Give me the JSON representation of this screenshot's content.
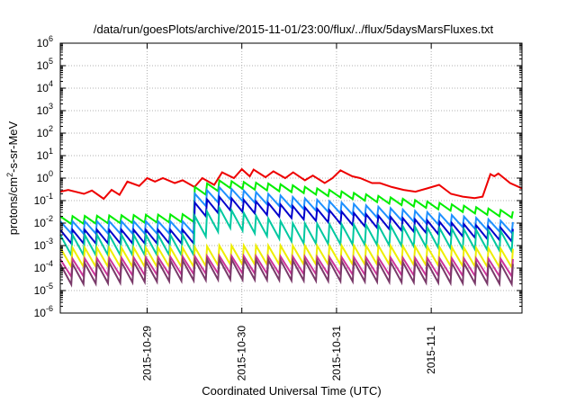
{
  "chart_data": {
    "type": "line",
    "title": "/data/run/goesPlots/archive/2015-11-01/23:00/flux/../flux/5daysMarsFluxes.txt",
    "xlabel": "Coordinated Universal Time (UTC)",
    "ylabel": {
      "base": "protons/cm",
      "sup": "2",
      "rest": "-s-sr-MeV"
    },
    "y_scale": "log",
    "ylim": [
      1e-06,
      1000000.0
    ],
    "y_ticks": [
      {
        "value": 1e-06,
        "base": "10",
        "exp": "-6"
      },
      {
        "value": 1e-05,
        "base": "10",
        "exp": "-5"
      },
      {
        "value": 0.0001,
        "base": "10",
        "exp": "-4"
      },
      {
        "value": 0.001,
        "base": "10",
        "exp": "-3"
      },
      {
        "value": 0.01,
        "base": "10",
        "exp": "-2"
      },
      {
        "value": 0.1,
        "base": "10",
        "exp": "-1"
      },
      {
        "value": 1,
        "base": "10",
        "exp": "0"
      },
      {
        "value": 10,
        "base": "10",
        "exp": "1"
      },
      {
        "value": 100,
        "base": "10",
        "exp": "2"
      },
      {
        "value": 1000,
        "base": "10",
        "exp": "3"
      },
      {
        "value": 10000,
        "base": "10",
        "exp": "4"
      },
      {
        "value": 100000,
        "base": "10",
        "exp": "5"
      },
      {
        "value": 1000000,
        "base": "10",
        "exp": "6"
      }
    ],
    "xlim": [
      "2015-10-28 02:00",
      "2015-11-01 23:00"
    ],
    "x_ticks": [
      {
        "value": "2015-10-29 00:00",
        "label": "2015-10-29"
      },
      {
        "value": "2015-10-30 00:00",
        "label": "2015-10-30"
      },
      {
        "value": "2015-10-31 00:00",
        "label": "2015-10-31"
      },
      {
        "value": "2015-11-01 00:00",
        "label": "2015-11-1"
      }
    ],
    "grid": true,
    "series": [
      {
        "color": "#ee0000",
        "values": [
          [
            "2015-10-28 02:00",
            0.25
          ],
          [
            "2015-10-28 04:00",
            0.3
          ],
          [
            "2015-10-28 08:00",
            0.2
          ],
          [
            "2015-10-28 10:00",
            0.28
          ],
          [
            "2015-10-28 13:00",
            0.12
          ],
          [
            "2015-10-28 15:00",
            0.3
          ],
          [
            "2015-10-28 17:00",
            0.18
          ],
          [
            "2015-10-28 19:00",
            0.7
          ],
          [
            "2015-10-28 22:00",
            0.45
          ],
          [
            "2015-10-29 00:00",
            1.0
          ],
          [
            "2015-10-29 02:00",
            0.7
          ],
          [
            "2015-10-29 04:00",
            1.0
          ],
          [
            "2015-10-29 07:00",
            0.6
          ],
          [
            "2015-10-29 09:00",
            0.8
          ],
          [
            "2015-10-29 12:00",
            0.4
          ],
          [
            "2015-10-29 14:00",
            1.0
          ],
          [
            "2015-10-29 17:00",
            0.5
          ],
          [
            "2015-10-29 19:00",
            1.8
          ],
          [
            "2015-10-29 22:00",
            1.0
          ],
          [
            "2015-10-30 00:00",
            2.5
          ],
          [
            "2015-10-30 02:00",
            1.2
          ],
          [
            "2015-10-30 03:00",
            2.4
          ],
          [
            "2015-10-30 06:00",
            1.1
          ],
          [
            "2015-10-30 08:00",
            2.0
          ],
          [
            "2015-10-30 11:00",
            1.0
          ],
          [
            "2015-10-30 13:00",
            1.8
          ],
          [
            "2015-10-30 16:00",
            0.8
          ],
          [
            "2015-10-30 18:00",
            1.3
          ],
          [
            "2015-10-30 21:00",
            0.6
          ],
          [
            "2015-10-30 23:00",
            1.0
          ],
          [
            "2015-10-31 01:00",
            2.2
          ],
          [
            "2015-10-31 04:00",
            1.2
          ],
          [
            "2015-10-31 06:00",
            1.0
          ],
          [
            "2015-10-31 09:00",
            0.6
          ],
          [
            "2015-10-31 11:00",
            0.6
          ],
          [
            "2015-10-31 14:00",
            0.4
          ],
          [
            "2015-10-31 17:00",
            0.3
          ],
          [
            "2015-10-31 20:00",
            0.25
          ],
          [
            "2015-10-31 23:00",
            0.35
          ],
          [
            "2015-11-01 02:00",
            0.5
          ],
          [
            "2015-11-01 05:00",
            0.2
          ],
          [
            "2015-11-01 08:00",
            0.15
          ],
          [
            "2015-11-01 11:00",
            0.13
          ],
          [
            "2015-11-01 13:00",
            0.15
          ],
          [
            "2015-11-01 15:00",
            1.5
          ],
          [
            "2015-11-01 16:00",
            1.2
          ],
          [
            "2015-11-01 17:00",
            1.6
          ],
          [
            "2015-11-01 20:00",
            0.6
          ],
          [
            "2015-11-01 23:00",
            0.35
          ]
        ]
      },
      {
        "color": "#00ee00",
        "shape": "sawtooth",
        "start": "2015-10-28 02:00",
        "end": "2015-11-01 23:00",
        "period_hours": 3.1,
        "peaks": [
          [
            "2015-10-28 02:00",
            0.02
          ],
          [
            "2015-10-29 10:00",
            0.025
          ],
          [
            "2015-10-29 12:00",
            0.4
          ],
          [
            "2015-10-29 18:00",
            0.8
          ],
          [
            "2015-10-30 12:00",
            0.5
          ],
          [
            "2015-10-31 12:00",
            0.15
          ],
          [
            "2015-11-01 23:00",
            0.03
          ]
        ],
        "depth": 2.2
      },
      {
        "color": "#1e90ff",
        "shape": "sawtooth",
        "start": "2015-10-28 02:00",
        "end": "2015-11-01 23:00",
        "period_hours": 3.1,
        "peaks": [
          [
            "2015-10-28 02:00",
            0.012
          ],
          [
            "2015-10-29 10:00",
            0.012
          ],
          [
            "2015-10-29 12:00",
            0.2
          ],
          [
            "2015-10-29 18:00",
            0.4
          ],
          [
            "2015-10-30 12:00",
            0.15
          ],
          [
            "2015-10-31 12:00",
            0.05
          ],
          [
            "2015-11-01 23:00",
            0.01
          ]
        ],
        "depth": 3.5
      },
      {
        "color": "#0000cc",
        "shape": "sawtooth",
        "start": "2015-10-28 02:00",
        "end": "2015-11-01 23:00",
        "period_hours": 3.1,
        "peaks": [
          [
            "2015-10-28 02:00",
            0.005
          ],
          [
            "2015-10-29 10:00",
            0.005
          ],
          [
            "2015-10-29 12:00",
            0.08
          ],
          [
            "2015-10-29 18:00",
            0.15
          ],
          [
            "2015-10-30 12:00",
            0.06
          ],
          [
            "2015-10-31 12:00",
            0.02
          ],
          [
            "2015-11-01 23:00",
            0.005
          ]
        ],
        "depth": 4.0
      },
      {
        "color": "#00c8a0",
        "shape": "sawtooth",
        "start": "2015-10-28 02:00",
        "end": "2015-11-01 23:00",
        "period_hours": 3.1,
        "peaks": [
          [
            "2015-10-28 02:00",
            0.003
          ],
          [
            "2015-10-29 10:00",
            0.003
          ],
          [
            "2015-10-29 12:00",
            0.02
          ],
          [
            "2015-10-29 18:00",
            0.05
          ],
          [
            "2015-10-30 12:00",
            0.01
          ],
          [
            "2015-10-31 12:00",
            0.008
          ],
          [
            "2015-11-01 23:00",
            0.004
          ]
        ],
        "depth": 8.0
      },
      {
        "color": "#eeee00",
        "shape": "sawtooth",
        "start": "2015-10-28 02:00",
        "end": "2015-11-01 23:00",
        "period_hours": 3.1,
        "peaks": [
          [
            "2015-10-28 02:00",
            0.0008
          ],
          [
            "2015-10-29 10:00",
            0.0008
          ],
          [
            "2015-10-29 18:00",
            0.001
          ],
          [
            "2015-10-31 12:00",
            0.001
          ],
          [
            "2015-11-01 23:00",
            0.0007
          ]
        ],
        "depth": 7.0
      },
      {
        "color": "#cc3399",
        "shape": "sawtooth",
        "start": "2015-10-28 02:00",
        "end": "2015-11-01 23:00",
        "period_hours": 3.1,
        "peaks": [
          [
            "2015-10-28 02:00",
            0.00025
          ],
          [
            "2015-10-29 18:00",
            0.00035
          ],
          [
            "2015-11-01 23:00",
            0.00025
          ]
        ],
        "depth": 6.0
      },
      {
        "color": "#7a3a6a",
        "shape": "sawtooth",
        "start": "2015-10-28 02:00",
        "end": "2015-11-01 23:00",
        "period_hours": 3.1,
        "peaks": [
          [
            "2015-10-28 02:00",
            0.00015
          ],
          [
            "2015-10-29 18:00",
            0.00025
          ],
          [
            "2015-11-01 23:00",
            0.00015
          ]
        ],
        "depth": 8.0
      }
    ]
  }
}
